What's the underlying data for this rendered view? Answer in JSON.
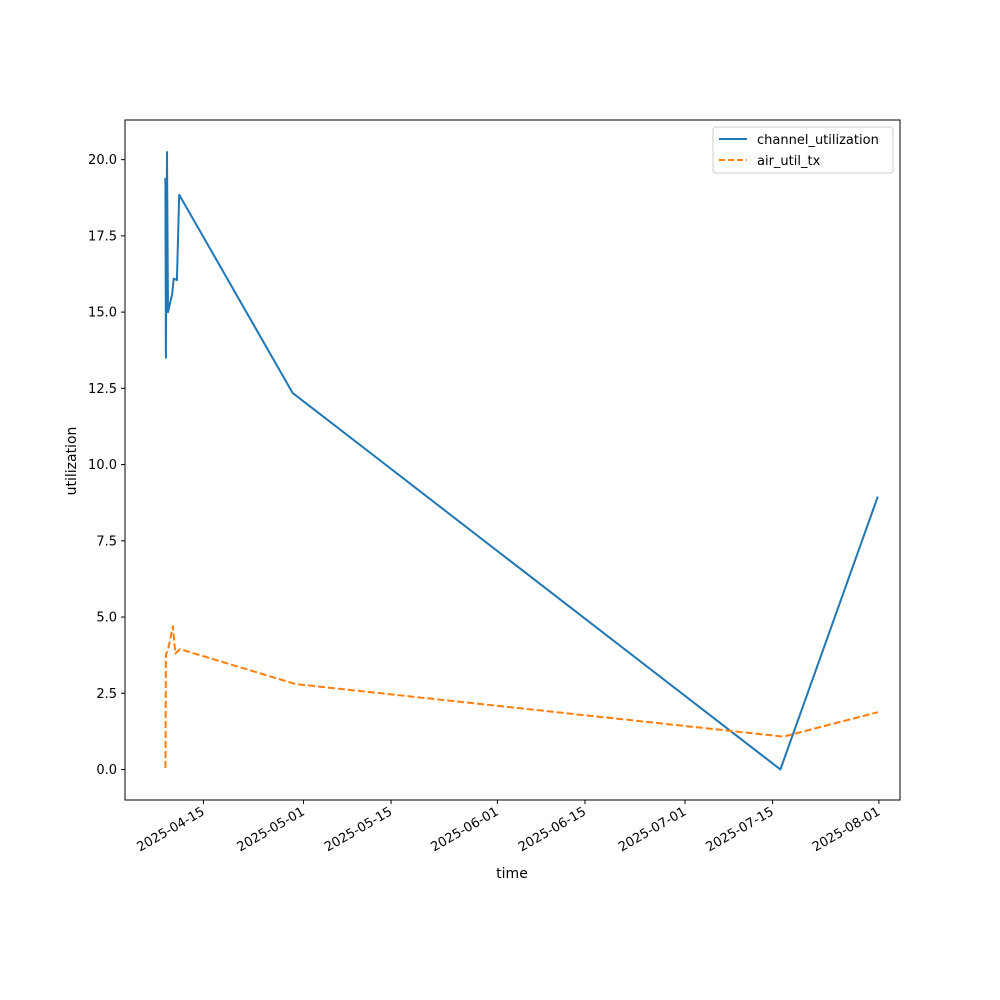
{
  "chart_data": {
    "type": "line",
    "title": "",
    "xlabel": "time",
    "ylabel": "utilization",
    "x_tick_labels": [
      "2025-04-15",
      "2025-05-01",
      "2025-05-15",
      "2025-06-01",
      "2025-06-15",
      "2025-07-01",
      "2025-07-15",
      "2025-08-01"
    ],
    "y_tick_labels": [
      "0.0",
      "2.5",
      "5.0",
      "7.5",
      "10.0",
      "12.5",
      "15.0",
      "17.5",
      "20.0"
    ],
    "y_ticks": [
      0,
      2.5,
      5,
      7.5,
      10,
      12.5,
      15,
      17.5,
      20
    ],
    "ylim": [
      -1.0,
      21.3
    ],
    "xlim": [
      "2025-04-02T11:00",
      "2025-08-04T09:00"
    ],
    "grid": false,
    "legend": {
      "position": "top-right"
    },
    "series": [
      {
        "name": "channel_utilization",
        "color": "#1f77b4",
        "style": "solid",
        "points": [
          [
            "2025-04-08T22:00",
            19.4
          ],
          [
            "2025-04-09T00:00",
            13.5
          ],
          [
            "2025-04-09T04:00",
            20.25
          ],
          [
            "2025-04-09T08:00",
            15.0
          ],
          [
            "2025-04-10T00:00",
            15.6
          ],
          [
            "2025-04-10T06:00",
            16.1
          ],
          [
            "2025-04-10T18:00",
            16.05
          ],
          [
            "2025-04-11T03:00",
            18.85
          ],
          [
            "2025-04-29T06:00",
            12.35
          ],
          [
            "2025-07-16T06:00",
            0.0
          ],
          [
            "2025-07-31T20:00",
            8.95
          ]
        ]
      },
      {
        "name": "air_util_tx",
        "color": "#ff7f0e",
        "style": "dashed",
        "points": [
          [
            "2025-04-08T22:00",
            0.05
          ],
          [
            "2025-04-09T00:00",
            3.75
          ],
          [
            "2025-04-09T10:00",
            4.0
          ],
          [
            "2025-04-10T03:00",
            4.7
          ],
          [
            "2025-04-10T12:00",
            3.8
          ],
          [
            "2025-04-11T06:00",
            3.95
          ],
          [
            "2025-04-29T18:00",
            2.8
          ],
          [
            "2025-07-16T18:00",
            1.08
          ],
          [
            "2025-07-31T20:00",
            1.88
          ]
        ]
      }
    ]
  }
}
